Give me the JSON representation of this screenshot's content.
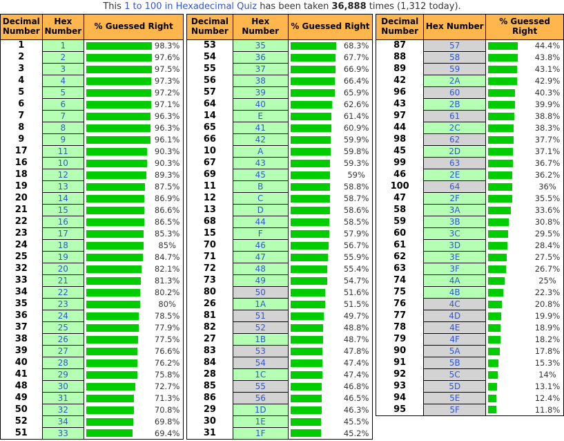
{
  "title": {
    "prefix": "This",
    "link": "1 to 100 in Hexadecimal Quiz",
    "middle": "has been taken",
    "count": "36,888",
    "suffix": "times (1,312 today)."
  },
  "columns": [
    "Decimal Number",
    "Hex Number",
    "% Guessed Right"
  ],
  "colors": {
    "header_bg": "#ffb74d",
    "hex_cell_green": "#b4ffb4",
    "hex_cell_gray": "#d3d3d3",
    "bar_green": "#00cc00",
    "link_blue": "#3355cc",
    "text": "#333333"
  },
  "row_format": [
    "decimal",
    "hex",
    "pct_label",
    "pct_value",
    "hex_bg"
  ],
  "tables": [
    {
      "rows": [
        [
          "1",
          "1",
          "98.3%",
          98.3,
          "green"
        ],
        [
          "2",
          "2",
          "97.6%",
          97.6,
          "green"
        ],
        [
          "3",
          "3",
          "97.5%",
          97.5,
          "green"
        ],
        [
          "4",
          "4",
          "97.3%",
          97.3,
          "green"
        ],
        [
          "5",
          "5",
          "97.2%",
          97.2,
          "green"
        ],
        [
          "6",
          "6",
          "97.1%",
          97.1,
          "green"
        ],
        [
          "7",
          "7",
          "96.3%",
          96.3,
          "green"
        ],
        [
          "8",
          "8",
          "96.3%",
          96.3,
          "green"
        ],
        [
          "9",
          "9",
          "96.1%",
          96.1,
          "green"
        ],
        [
          "17",
          "11",
          "90.3%",
          90.3,
          "green"
        ],
        [
          "16",
          "10",
          "90.3%",
          90.3,
          "green"
        ],
        [
          "18",
          "12",
          "89.3%",
          89.3,
          "green"
        ],
        [
          "19",
          "13",
          "87.5%",
          87.5,
          "green"
        ],
        [
          "20",
          "14",
          "86.9%",
          86.9,
          "green"
        ],
        [
          "21",
          "15",
          "86.6%",
          86.6,
          "green"
        ],
        [
          "22",
          "16",
          "86.5%",
          86.5,
          "green"
        ],
        [
          "23",
          "17",
          "85.3%",
          85.3,
          "green"
        ],
        [
          "24",
          "18",
          "85%",
          85,
          "green"
        ],
        [
          "25",
          "19",
          "84.7%",
          84.7,
          "green"
        ],
        [
          "32",
          "20",
          "82.1%",
          82.1,
          "green"
        ],
        [
          "33",
          "21",
          "81.3%",
          81.3,
          "green"
        ],
        [
          "34",
          "22",
          "80.2%",
          80.2,
          "green"
        ],
        [
          "35",
          "23",
          "80%",
          80,
          "green"
        ],
        [
          "36",
          "24",
          "78.5%",
          78.5,
          "green"
        ],
        [
          "37",
          "25",
          "77.9%",
          77.9,
          "green"
        ],
        [
          "38",
          "26",
          "77.5%",
          77.5,
          "green"
        ],
        [
          "39",
          "27",
          "76.6%",
          76.6,
          "green"
        ],
        [
          "40",
          "28",
          "76.2%",
          76.2,
          "green"
        ],
        [
          "41",
          "29",
          "75.8%",
          75.8,
          "green"
        ],
        [
          "48",
          "30",
          "72.7%",
          72.7,
          "green"
        ],
        [
          "49",
          "31",
          "71.3%",
          71.3,
          "green"
        ],
        [
          "50",
          "32",
          "70.8%",
          70.8,
          "green"
        ],
        [
          "52",
          "34",
          "69.8%",
          69.8,
          "green"
        ],
        [
          "51",
          "33",
          "69.4%",
          69.4,
          "green"
        ]
      ]
    },
    {
      "rows": [
        [
          "53",
          "35",
          "68.3%",
          68.3,
          "green"
        ],
        [
          "54",
          "36",
          "67.7%",
          67.7,
          "green"
        ],
        [
          "55",
          "37",
          "66.9%",
          66.9,
          "green"
        ],
        [
          "56",
          "38",
          "66.4%",
          66.4,
          "green"
        ],
        [
          "57",
          "39",
          "65.9%",
          65.9,
          "green"
        ],
        [
          "64",
          "40",
          "62.6%",
          62.6,
          "green"
        ],
        [
          "14",
          "E",
          "61.4%",
          61.4,
          "green"
        ],
        [
          "65",
          "41",
          "60.9%",
          60.9,
          "green"
        ],
        [
          "66",
          "42",
          "59.9%",
          59.9,
          "green"
        ],
        [
          "10",
          "A",
          "59.8%",
          59.8,
          "green"
        ],
        [
          "67",
          "43",
          "59.3%",
          59.3,
          "green"
        ],
        [
          "69",
          "45",
          "59%",
          59,
          "green"
        ],
        [
          "11",
          "B",
          "58.8%",
          58.8,
          "green"
        ],
        [
          "12",
          "C",
          "58.7%",
          58.7,
          "green"
        ],
        [
          "13",
          "D",
          "58.6%",
          58.6,
          "green"
        ],
        [
          "68",
          "44",
          "58.5%",
          58.5,
          "green"
        ],
        [
          "15",
          "F",
          "57.9%",
          57.9,
          "green"
        ],
        [
          "70",
          "46",
          "56.7%",
          56.7,
          "green"
        ],
        [
          "71",
          "47",
          "55.9%",
          55.9,
          "green"
        ],
        [
          "72",
          "48",
          "55.4%",
          55.4,
          "green"
        ],
        [
          "73",
          "49",
          "54.7%",
          54.7,
          "green"
        ],
        [
          "80",
          "50",
          "51.6%",
          51.6,
          "gray"
        ],
        [
          "26",
          "1A",
          "51.5%",
          51.5,
          "green"
        ],
        [
          "81",
          "51",
          "49.7%",
          49.7,
          "gray"
        ],
        [
          "82",
          "52",
          "48.8%",
          48.8,
          "gray"
        ],
        [
          "27",
          "1B",
          "48.7%",
          48.7,
          "green"
        ],
        [
          "83",
          "53",
          "47.8%",
          47.8,
          "gray"
        ],
        [
          "84",
          "54",
          "47.4%",
          47.4,
          "gray"
        ],
        [
          "28",
          "1C",
          "47.4%",
          47.4,
          "green"
        ],
        [
          "85",
          "55",
          "46.8%",
          46.8,
          "gray"
        ],
        [
          "86",
          "56",
          "46.5%",
          46.5,
          "gray"
        ],
        [
          "29",
          "1D",
          "46.3%",
          46.3,
          "green"
        ],
        [
          "30",
          "1E",
          "45.5%",
          45.5,
          "green"
        ],
        [
          "31",
          "1F",
          "45.2%",
          45.2,
          "green"
        ]
      ]
    },
    {
      "rows": [
        [
          "87",
          "57",
          "44.4%",
          44.4,
          "gray"
        ],
        [
          "88",
          "58",
          "43.8%",
          43.8,
          "gray"
        ],
        [
          "89",
          "59",
          "43.1%",
          43.1,
          "gray"
        ],
        [
          "42",
          "2A",
          "42.9%",
          42.9,
          "green"
        ],
        [
          "96",
          "60",
          "40.3%",
          40.3,
          "gray"
        ],
        [
          "43",
          "2B",
          "39.9%",
          39.9,
          "green"
        ],
        [
          "97",
          "61",
          "38.8%",
          38.8,
          "gray"
        ],
        [
          "44",
          "2C",
          "38.3%",
          38.3,
          "green"
        ],
        [
          "98",
          "62",
          "37.7%",
          37.7,
          "gray"
        ],
        [
          "45",
          "2D",
          "37.1%",
          37.1,
          "green"
        ],
        [
          "99",
          "63",
          "36.7%",
          36.7,
          "gray"
        ],
        [
          "46",
          "2E",
          "36.2%",
          36.2,
          "green"
        ],
        [
          "100",
          "64",
          "36%",
          36,
          "gray"
        ],
        [
          "47",
          "2F",
          "35.5%",
          35.5,
          "green"
        ],
        [
          "58",
          "3A",
          "33.6%",
          33.6,
          "green"
        ],
        [
          "59",
          "3B",
          "30.8%",
          30.8,
          "green"
        ],
        [
          "60",
          "3C",
          "29.5%",
          29.5,
          "green"
        ],
        [
          "61",
          "3D",
          "28.4%",
          28.4,
          "green"
        ],
        [
          "62",
          "3E",
          "27.5%",
          27.5,
          "green"
        ],
        [
          "63",
          "3F",
          "26.7%",
          26.7,
          "green"
        ],
        [
          "74",
          "4A",
          "25%",
          25,
          "green"
        ],
        [
          "75",
          "4B",
          "22.3%",
          22.3,
          "green"
        ],
        [
          "76",
          "4C",
          "20.8%",
          20.8,
          "gray"
        ],
        [
          "77",
          "4D",
          "19.9%",
          19.9,
          "gray"
        ],
        [
          "78",
          "4E",
          "18.9%",
          18.9,
          "gray"
        ],
        [
          "79",
          "4F",
          "18.2%",
          18.2,
          "gray"
        ],
        [
          "90",
          "5A",
          "17.8%",
          17.8,
          "gray"
        ],
        [
          "91",
          "5B",
          "15.3%",
          15.3,
          "gray"
        ],
        [
          "92",
          "5C",
          "14%",
          14,
          "gray"
        ],
        [
          "93",
          "5D",
          "13.1%",
          13.1,
          "gray"
        ],
        [
          "94",
          "5E",
          "12.4%",
          12.4,
          "gray"
        ],
        [
          "95",
          "5F",
          "11.8%",
          11.8,
          "gray"
        ]
      ]
    }
  ]
}
